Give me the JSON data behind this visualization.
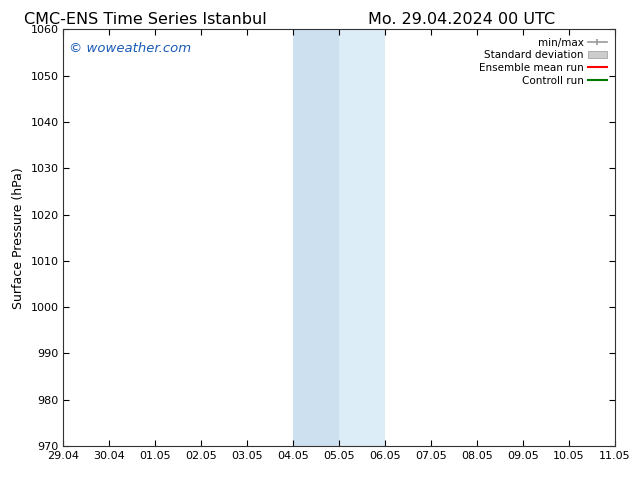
{
  "title_left": "CMC-ENS Time Series Istanbul",
  "title_right": "Mo. 29.04.2024 00 UTC",
  "ylabel": "Surface Pressure (hPa)",
  "ylim": [
    970,
    1060
  ],
  "yticks": [
    970,
    980,
    990,
    1000,
    1010,
    1020,
    1030,
    1040,
    1050,
    1060
  ],
  "xticks": [
    "29.04",
    "30.04",
    "01.05",
    "02.05",
    "03.05",
    "04.05",
    "05.05",
    "06.05",
    "07.05",
    "08.05",
    "09.05",
    "10.05",
    "11.05"
  ],
  "xtick_positions": [
    0,
    1,
    2,
    3,
    4,
    5,
    6,
    7,
    8,
    9,
    10,
    11,
    12
  ],
  "shade1_color": "#cde0f0",
  "shade2_color": "#ddedf8",
  "watermark_text": "© woweather.com",
  "watermark_color": "#1a5cb5",
  "legend_labels": [
    "min/max",
    "Standard deviation",
    "Ensemble mean run",
    "Controll run"
  ],
  "legend_colors": [
    "#999999",
    "#cccccc",
    "#ff0000",
    "#007700"
  ],
  "background_color": "#ffffff",
  "title_fontsize": 11.5,
  "ylabel_fontsize": 9,
  "tick_fontsize": 8,
  "watermark_fontsize": 9.5,
  "legend_fontsize": 7.5
}
